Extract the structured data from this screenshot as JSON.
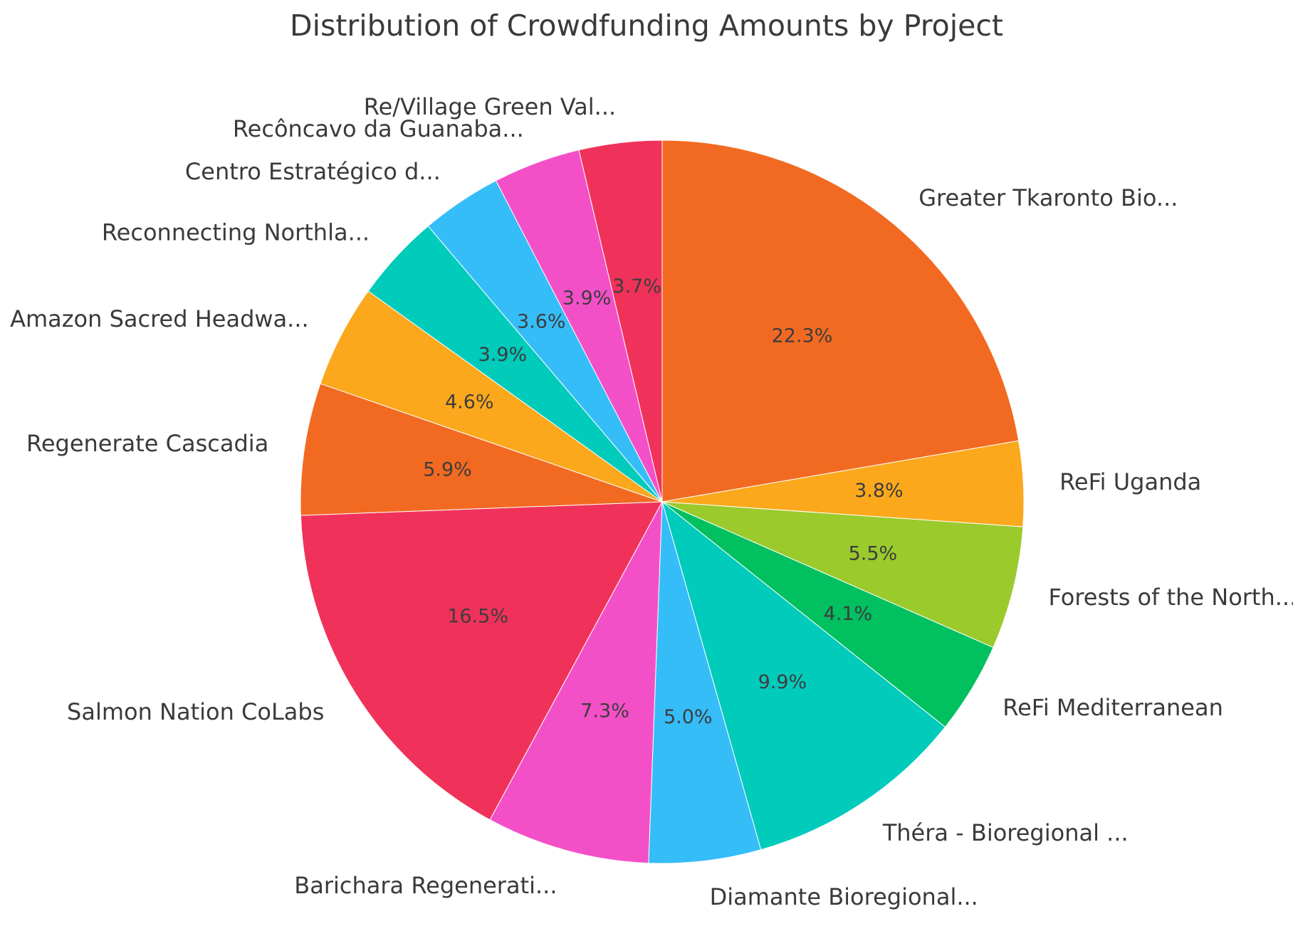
{
  "page": {
    "background_color": "#ffffff",
    "text_color": "#3a3a3a"
  },
  "chart_data": {
    "type": "pie",
    "title": "Distribution of Crowdfunding Amounts by Project",
    "title_color": "#3a3a3a",
    "label_color": "#3a3a3a",
    "pct_label_color": "#3d3d3d",
    "start_angle": 90,
    "direction": "clockwise",
    "label_distance": 1.1,
    "pct_distance": 0.6,
    "legend": "none",
    "categories": [
      "Greater Tkaronto Bio...",
      "ReFi Uganda",
      "Forests of the North...",
      "ReFi Mediterranean",
      "Théra - Bioregional ...",
      "Diamante Bioregional...",
      "Barichara Regenerati...",
      "Salmon Nation CoLabs",
      "Regenerate Cascadia",
      "Amazon Sacred Headwa...",
      "Reconnecting Northla...",
      "Centro Estratégico d...",
      "Recôncavo da Guanaba...",
      "Re/Village Green Val..."
    ],
    "values": [
      22.3,
      3.8,
      5.5,
      4.1,
      9.9,
      5.0,
      7.3,
      16.5,
      5.9,
      4.6,
      3.9,
      3.6,
      3.9,
      3.7
    ],
    "slices": [
      {
        "label": "Greater Tkaronto Bio...",
        "pct": 22.3,
        "pct_label": "22.3%",
        "color": "#F26A21"
      },
      {
        "label": "ReFi Uganda",
        "pct": 3.8,
        "pct_label": "3.8%",
        "color": "#FBA81C"
      },
      {
        "label": "Forests of the North...",
        "pct": 5.5,
        "pct_label": "5.5%",
        "color": "#9ACA2C"
      },
      {
        "label": "ReFi Mediterranean",
        "pct": 4.1,
        "pct_label": "4.1%",
        "color": "#00C060"
      },
      {
        "label": "Théra - Bioregional ...",
        "pct": 9.9,
        "pct_label": "9.9%",
        "color": "#01CBBB"
      },
      {
        "label": "Diamante Bioregional...",
        "pct": 5.0,
        "pct_label": "5.0%",
        "color": "#35BDF8"
      },
      {
        "label": "Barichara Regenerati...",
        "pct": 7.3,
        "pct_label": "7.3%",
        "color": "#F350C8"
      },
      {
        "label": "Salmon Nation CoLabs",
        "pct": 16.5,
        "pct_label": "16.5%",
        "color": "#F0325A"
      },
      {
        "label": "Regenerate Cascadia",
        "pct": 5.9,
        "pct_label": "5.9%",
        "color": "#F26A21"
      },
      {
        "label": "Amazon Sacred Headwa...",
        "pct": 4.6,
        "pct_label": "4.6%",
        "color": "#FBA81C"
      },
      {
        "label": "Reconnecting Northla...",
        "pct": 3.9,
        "pct_label": "3.9%",
        "color": "#01CBBB"
      },
      {
        "label": "Centro Estratégico d...",
        "pct": 3.6,
        "pct_label": "3.6%",
        "color": "#35BDF8"
      },
      {
        "label": "Recôncavo da Guanaba...",
        "pct": 3.9,
        "pct_label": "3.9%",
        "color": "#F350C8"
      },
      {
        "label": "Re/Village Green Val...",
        "pct": 3.7,
        "pct_label": "3.7%",
        "color": "#F0325A"
      }
    ]
  }
}
